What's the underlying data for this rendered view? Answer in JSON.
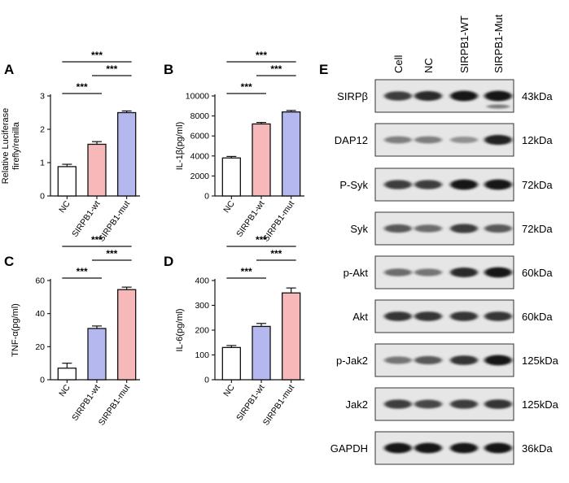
{
  "chart_data": [
    {
      "panel": "A",
      "type": "bar",
      "categories": [
        "NC",
        "SIRPB1-wt",
        "SIRPB1-mut"
      ],
      "values": [
        0.88,
        1.55,
        2.5
      ],
      "errors": [
        0.07,
        0.08,
        0.05
      ],
      "colors": [
        "#ffffff",
        "#f6b8b8",
        "#b4b8ef"
      ],
      "ylabel_lines": [
        "Relative Luciferase",
        "firefly/renilla"
      ],
      "ylim": [
        0,
        3
      ],
      "yticks": [
        0,
        1,
        2,
        3
      ],
      "significance": [
        {
          "from": 0,
          "to": 1,
          "label": "***"
        },
        {
          "from": 0,
          "to": 2,
          "label": "***"
        },
        {
          "from": 1,
          "to": 2,
          "label": "***"
        }
      ]
    },
    {
      "panel": "B",
      "type": "bar",
      "categories": [
        "NC",
        "SIRPB1-wt",
        "SIRPB1-mut"
      ],
      "values": [
        3800,
        7200,
        8400
      ],
      "errors": [
        150,
        150,
        150
      ],
      "colors": [
        "#ffffff",
        "#f6b8b8",
        "#b4b8ef"
      ],
      "ylabel_lines": [
        "IL-1β(pg/ml)"
      ],
      "ylim": [
        0,
        10000
      ],
      "yticks": [
        0,
        2000,
        4000,
        6000,
        8000,
        10000
      ],
      "significance": [
        {
          "from": 0,
          "to": 1,
          "label": "***"
        },
        {
          "from": 0,
          "to": 2,
          "label": "***"
        },
        {
          "from": 1,
          "to": 2,
          "label": "***"
        }
      ]
    },
    {
      "panel": "C",
      "type": "bar",
      "categories": [
        "NC",
        "SIRPB1-wt",
        "SIRPB1-mut"
      ],
      "values": [
        7,
        31,
        54.5
      ],
      "errors": [
        3,
        1.5,
        1.5
      ],
      "colors": [
        "#ffffff",
        "#b4b8ef",
        "#f6b8b8"
      ],
      "ylabel_lines": [
        "TNF-α(pg/ml)"
      ],
      "ylim": [
        0,
        60
      ],
      "yticks": [
        0,
        20,
        40,
        60
      ],
      "significance": [
        {
          "from": 0,
          "to": 1,
          "label": "***"
        },
        {
          "from": 0,
          "to": 2,
          "label": "***"
        },
        {
          "from": 1,
          "to": 2,
          "label": "***"
        }
      ]
    },
    {
      "panel": "D",
      "type": "bar",
      "categories": [
        "NC",
        "SIRPB1-wt",
        "SIRPB1-mut"
      ],
      "values": [
        130,
        215,
        350
      ],
      "errors": [
        8,
        12,
        20
      ],
      "colors": [
        "#ffffff",
        "#b4b8ef",
        "#f6b8b8"
      ],
      "ylabel_lines": [
        "IL-6(pg/ml)"
      ],
      "ylim": [
        0,
        400
      ],
      "yticks": [
        0,
        100,
        200,
        300,
        400
      ],
      "significance": [
        {
          "from": 0,
          "to": 1,
          "label": "***"
        },
        {
          "from": 0,
          "to": 2,
          "label": "***"
        },
        {
          "from": 1,
          "to": 2,
          "label": "***"
        }
      ]
    }
  ],
  "western_blot": {
    "panel": "E",
    "lanes": [
      "Cell",
      "NC",
      "SIRPB1-WT",
      "SIRPB1-Mut"
    ],
    "rows": [
      {
        "protein": "SIRPβ",
        "size": "43kDa",
        "intensity": [
          0.75,
          0.85,
          0.95,
          0.95
        ],
        "extra_band_lane": 3
      },
      {
        "protein": "DAP12",
        "size": "12kDa",
        "intensity": [
          0.4,
          0.4,
          0.3,
          0.9
        ]
      },
      {
        "protein": "P-Syk",
        "size": "72kDa",
        "intensity": [
          0.75,
          0.75,
          0.95,
          0.95
        ]
      },
      {
        "protein": "Syk",
        "size": "72kDa",
        "intensity": [
          0.6,
          0.5,
          0.75,
          0.6
        ]
      },
      {
        "protein": "p-Akt",
        "size": "60kDa",
        "intensity": [
          0.5,
          0.45,
          0.85,
          0.95
        ]
      },
      {
        "protein": "Akt",
        "size": "60kDa",
        "intensity": [
          0.8,
          0.8,
          0.8,
          0.8
        ]
      },
      {
        "protein": "p-Jak2",
        "size": "125kDa",
        "intensity": [
          0.45,
          0.6,
          0.8,
          0.95
        ]
      },
      {
        "protein": "Jak2",
        "size": "125kDa",
        "intensity": [
          0.75,
          0.7,
          0.75,
          0.8
        ]
      },
      {
        "protein": "GAPDH",
        "size": "36kDa",
        "intensity": [
          0.95,
          0.95,
          0.95,
          0.95
        ]
      }
    ]
  }
}
